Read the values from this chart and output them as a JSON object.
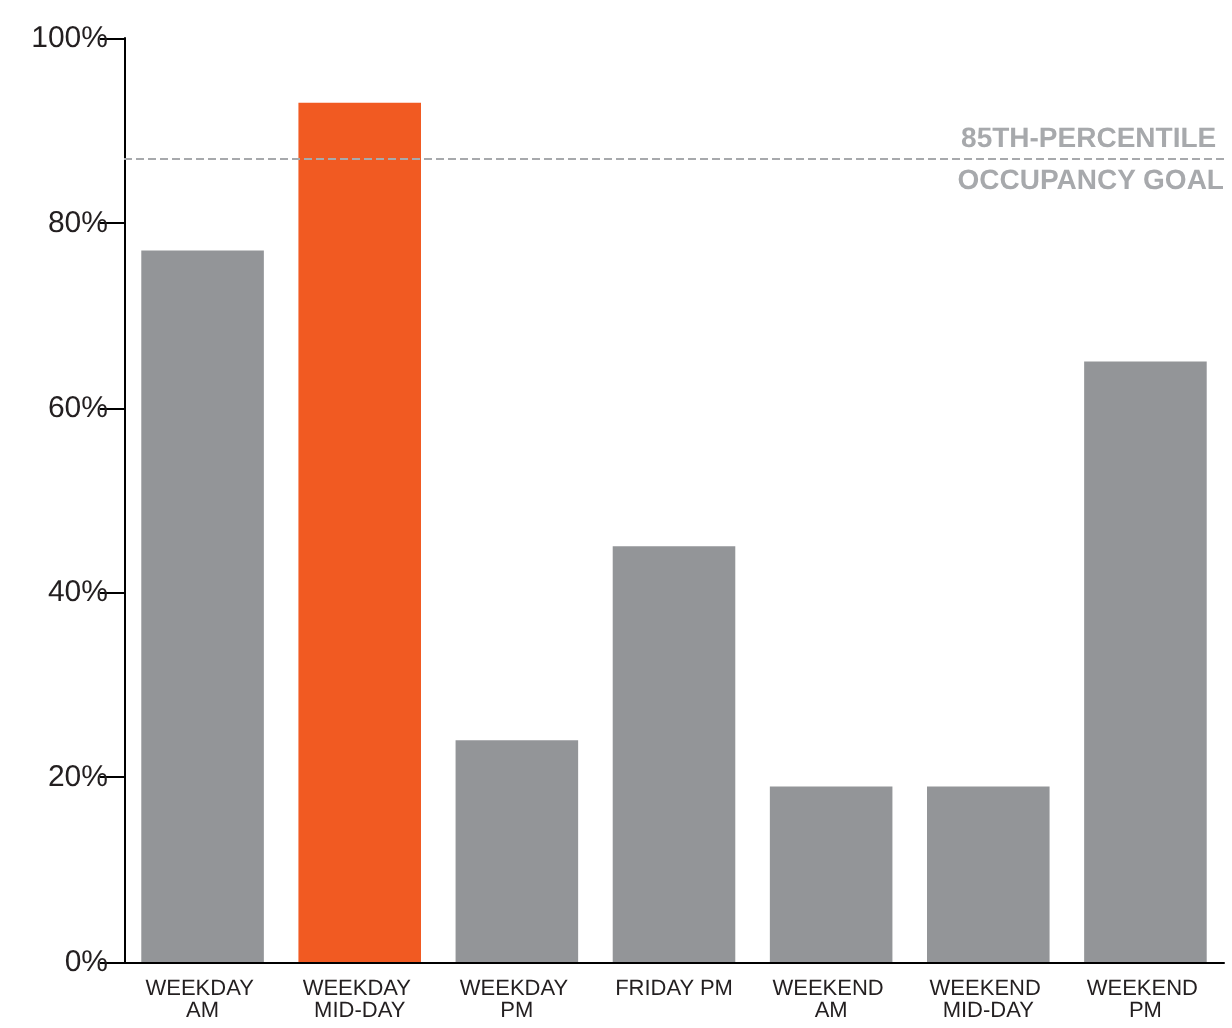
{
  "chart_data": {
    "type": "bar",
    "categories": [
      "WEEKDAY AM",
      "WEEKDAY MID-DAY",
      "WEEKDAY PM",
      "FRIDAY PM",
      "WEEKEND AM",
      "WEEKEND MID-DAY",
      "WEEKEND PM"
    ],
    "values": [
      77,
      93,
      24,
      45,
      19,
      19,
      65
    ],
    "colors": [
      "#939598",
      "#f15a22",
      "#939598",
      "#939598",
      "#939598",
      "#939598",
      "#939598"
    ],
    "ylim": [
      0,
      100
    ],
    "yticks": [
      {
        "value": 0,
        "label": "0%"
      },
      {
        "value": 20,
        "label": "20%"
      },
      {
        "value": 40,
        "label": "40%"
      },
      {
        "value": 60,
        "label": "60%"
      },
      {
        "value": 80,
        "label": "80%"
      },
      {
        "value": 100,
        "label": "100%"
      }
    ],
    "ref_lines": [
      {
        "axis": "y",
        "value": 87,
        "label": "85TH-PERCENTILE OCCUPANCY GOAL",
        "color": "#a7a9ac",
        "line_style": "dashed"
      }
    ],
    "grid": false
  }
}
